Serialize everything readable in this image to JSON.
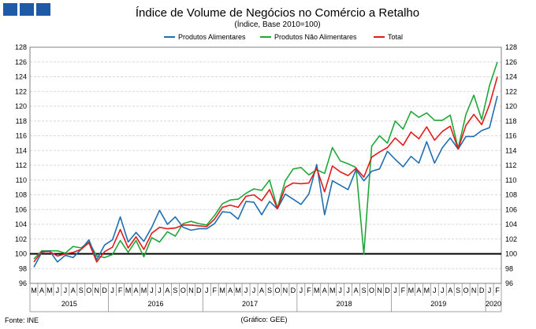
{
  "logo_color": "#1f5aa6",
  "colors": {
    "food": "#1f6fb2",
    "nonfood": "#1fa83a",
    "total": "#e41a1c",
    "baseline": "#000000"
  },
  "chart_data": {
    "type": "line",
    "title": "Índice de Volume de Negócios no Comércio a Retalho",
    "subtitle": "(Índice, Base 2010=100)",
    "ylim": [
      96,
      128
    ],
    "y_ticks": [
      96,
      98,
      100,
      102,
      104,
      106,
      108,
      110,
      112,
      114,
      116,
      118,
      120,
      122,
      124,
      126,
      128
    ],
    "y_tick_labels": [
      "96",
      "98",
      "100",
      "102",
      "104",
      "106",
      "108",
      "110",
      "112",
      "114",
      "116",
      "118",
      "120",
      "122",
      "124",
      "126",
      "128"
    ],
    "reference_line": 100,
    "grid": true,
    "legend_position": "top",
    "month_labels": [
      "M",
      "A",
      "M",
      "J",
      "J",
      "A",
      "S",
      "O",
      "N",
      "D",
      "J",
      "F",
      "M",
      "A",
      "M",
      "J",
      "J",
      "A",
      "S",
      "O",
      "N",
      "D",
      "J",
      "F",
      "M",
      "A",
      "M",
      "J",
      "J",
      "A",
      "S",
      "O",
      "N",
      "D",
      "J",
      "F",
      "M",
      "A",
      "M",
      "J",
      "J",
      "A",
      "S",
      "O",
      "N",
      "D",
      "J",
      "F",
      "M",
      "A",
      "M",
      "J",
      "J",
      "A",
      "S",
      "O",
      "N",
      "D",
      "J",
      "F"
    ],
    "year_labels": [
      "2015",
      "2016",
      "2017",
      "2018",
      "2019",
      "2020"
    ],
    "series": [
      {
        "name": "Produtos Alimentares",
        "values": [
          98.2,
          100.2,
          100.4,
          98.9,
          99.8,
          99.5,
          100.6,
          101.9,
          99.2,
          101.2,
          101.9,
          105.0,
          101.6,
          102.9,
          101.7,
          103.6,
          105.9,
          104.0,
          105.0,
          103.6,
          103.2,
          103.4,
          103.4,
          104.1,
          105.7,
          105.6,
          104.7,
          107.1,
          107.0,
          105.3,
          107.1,
          106.1,
          108.1,
          107.4,
          106.7,
          108.1,
          112.1,
          105.3,
          109.9,
          109.3,
          108.7,
          111.4,
          109.9,
          111.2,
          111.5,
          113.9,
          112.8,
          111.8,
          113.2,
          112.3,
          115.2,
          112.3,
          114.4,
          115.7,
          114.2,
          115.9,
          115.9,
          116.7,
          117.1,
          121.4
        ]
      },
      {
        "name": "Produtos Não Alimentares",
        "values": [
          99.3,
          100.4,
          100.4,
          100.4,
          100.1,
          101.0,
          100.8,
          101.6,
          99.7,
          99.5,
          99.9,
          101.8,
          100.2,
          101.8,
          99.6,
          102.2,
          101.6,
          103.0,
          102.4,
          104.1,
          104.4,
          104.1,
          103.9,
          105.2,
          106.8,
          107.3,
          107.4,
          108.2,
          108.8,
          108.6,
          110.0,
          106.2,
          109.9,
          111.5,
          111.7,
          110.7,
          111.4,
          110.9,
          114.4,
          112.6,
          112.2,
          111.7,
          100.0,
          114.6,
          116.0,
          115.0,
          118.0,
          116.9,
          119.3,
          118.5,
          119.1,
          118.1,
          118.1,
          118.8,
          114.3,
          118.9,
          121.5,
          118.2,
          122.8,
          126.0
        ]
      },
      {
        "name": "Total",
        "values": [
          98.9,
          100.3,
          100.3,
          99.7,
          100.0,
          100.2,
          100.6,
          101.5,
          98.9,
          100.3,
          100.9,
          103.3,
          100.8,
          102.3,
          100.6,
          102.8,
          103.6,
          103.4,
          103.5,
          103.9,
          103.9,
          103.8,
          103.7,
          104.7,
          106.3,
          106.6,
          106.3,
          107.8,
          108.0,
          107.2,
          108.7,
          106.1,
          109.0,
          109.6,
          109.5,
          109.6,
          111.6,
          108.4,
          111.9,
          111.1,
          110.6,
          111.6,
          110.4,
          113.1,
          113.8,
          114.4,
          115.7,
          114.7,
          116.5,
          115.6,
          117.2,
          115.4,
          116.6,
          117.3,
          114.2,
          117.4,
          118.9,
          117.5,
          120.2,
          124.0
        ]
      }
    ]
  },
  "footer": {
    "source": "Fonte: INE",
    "graphic_credit": "(Gráfico: GEE)"
  }
}
